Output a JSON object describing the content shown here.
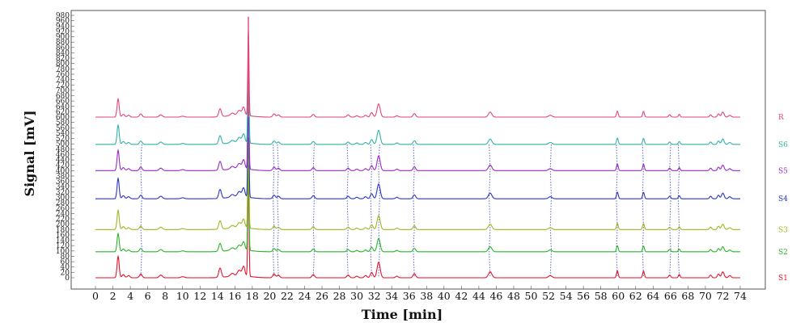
{
  "chart_data": {
    "type": "line",
    "xlabel": "Time [min]",
    "ylabel": "Signal [mV]",
    "xlim": [
      0,
      74
    ],
    "ylim": [
      0,
      980
    ],
    "x_ticks": [
      "0",
      "2",
      "4",
      "6",
      "8",
      "10",
      "12",
      "14",
      "16",
      "18",
      "20",
      "22",
      "24",
      "26",
      "28",
      "30",
      "32",
      "34",
      "36",
      "38",
      "40",
      "42",
      "44",
      "46",
      "48",
      "50",
      "52",
      "54",
      "56",
      "58",
      "60",
      "62",
      "64",
      "66",
      "68",
      "70",
      "72",
      "74"
    ],
    "y_ticks": [
      "0",
      "20",
      "40",
      "60",
      "80",
      "100",
      "120",
      "140",
      "160",
      "180",
      "200",
      "220",
      "240",
      "260",
      "280",
      "300",
      "320",
      "340",
      "360",
      "380",
      "400",
      "420",
      "440",
      "460",
      "480",
      "500",
      "520",
      "540",
      "560",
      "580",
      "600",
      "620",
      "640",
      "660",
      "680",
      "700",
      "720",
      "740",
      "760",
      "780",
      "800",
      "820",
      "840",
      "860",
      "880",
      "900",
      "920",
      "940",
      "960",
      "980"
    ],
    "grid": false,
    "series": [
      {
        "name": "S1",
        "color": "#e5142e",
        "baseline": 0
      },
      {
        "name": "S2",
        "color": "#2ab52a",
        "baseline": 97
      },
      {
        "name": "S3",
        "color": "#a4b421",
        "baseline": 180
      },
      {
        "name": "S4",
        "color": "#2b35c6",
        "baseline": 295
      },
      {
        "name": "S5",
        "color": "#9a2bc4",
        "baseline": 400
      },
      {
        "name": "S6",
        "color": "#2fb3a6",
        "baseline": 498
      },
      {
        "name": "R",
        "color": "#e0457a",
        "baseline": 600
      }
    ],
    "peaks": [
      {
        "t": 2.6,
        "h": 80,
        "w": 0.12
      },
      {
        "t": 3.2,
        "h": 12,
        "w": 0.15
      },
      {
        "t": 3.8,
        "h": 8,
        "w": 0.15
      },
      {
        "t": 5.2,
        "h": 14,
        "w": 0.15
      },
      {
        "t": 7.5,
        "h": 10,
        "w": 0.18
      },
      {
        "t": 10.0,
        "h": 4,
        "w": 0.2
      },
      {
        "t": 14.3,
        "h": 35,
        "w": 0.15
      },
      {
        "t": 15.7,
        "h": 10,
        "w": 0.2
      },
      {
        "t": 16.5,
        "h": 20,
        "w": 0.2
      },
      {
        "t": 17.0,
        "h": 35,
        "w": 0.15
      },
      {
        "t": 17.55,
        "h": 380,
        "w": 0.07
      },
      {
        "t": 20.5,
        "h": 14,
        "w": 0.15
      },
      {
        "t": 21.0,
        "h": 10,
        "w": 0.15
      },
      {
        "t": 25.0,
        "h": 12,
        "w": 0.15
      },
      {
        "t": 29.0,
        "h": 10,
        "w": 0.15
      },
      {
        "t": 30.0,
        "h": 6,
        "w": 0.15
      },
      {
        "t": 31.0,
        "h": 8,
        "w": 0.15
      },
      {
        "t": 31.7,
        "h": 20,
        "w": 0.15
      },
      {
        "t": 32.5,
        "h": 58,
        "w": 0.18
      },
      {
        "t": 34.6,
        "h": 6,
        "w": 0.15
      },
      {
        "t": 36.6,
        "h": 15,
        "w": 0.15
      },
      {
        "t": 45.3,
        "h": 22,
        "w": 0.2
      },
      {
        "t": 52.2,
        "h": 8,
        "w": 0.2
      },
      {
        "t": 59.9,
        "h": 26,
        "w": 0.1
      },
      {
        "t": 62.9,
        "h": 25,
        "w": 0.1
      },
      {
        "t": 65.9,
        "h": 10,
        "w": 0.12
      },
      {
        "t": 67.0,
        "h": 12,
        "w": 0.1
      },
      {
        "t": 70.6,
        "h": 10,
        "w": 0.12
      },
      {
        "t": 71.5,
        "h": 14,
        "w": 0.12
      },
      {
        "t": 72.0,
        "h": 22,
        "w": 0.15
      },
      {
        "t": 72.8,
        "h": 8,
        "w": 0.15
      }
    ],
    "alignment_lines_x": [
      5.2,
      20.5,
      21.0,
      25.0,
      29.0,
      31.7,
      32.5,
      36.6,
      45.3,
      52.2,
      59.9,
      62.9,
      65.9,
      67.0
    ]
  }
}
